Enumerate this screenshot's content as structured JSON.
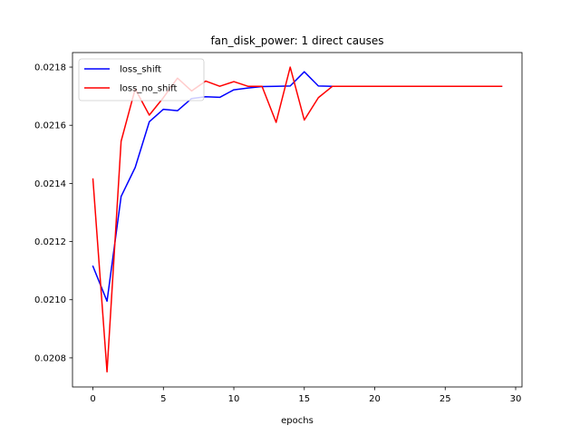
{
  "chart_data": {
    "type": "line",
    "title": "fan_disk_power: 1 direct causes",
    "xlabel": "epochs",
    "ylabel": "",
    "xlim": [
      -1.45,
      30.45
    ],
    "ylim": [
      0.0207,
      0.02185
    ],
    "xticks": [
      0,
      5,
      10,
      15,
      20,
      25,
      30
    ],
    "xtick_labels": [
      "0",
      "5",
      "10",
      "15",
      "20",
      "25",
      "30"
    ],
    "yticks": [
      0.0208,
      0.021,
      0.0212,
      0.0214,
      0.0216,
      0.0218
    ],
    "ytick_labels": [
      "0.0208",
      "0.0210",
      "0.0212",
      "0.0214",
      "0.0216",
      "0.0218"
    ],
    "grid": false,
    "legend_position": "top-left",
    "x": [
      0,
      1,
      2,
      3,
      4,
      5,
      6,
      7,
      8,
      9,
      10,
      11,
      12,
      13,
      14,
      15,
      16,
      17,
      18,
      19,
      20,
      21,
      22,
      23,
      24,
      25,
      26,
      27,
      28,
      29
    ],
    "series": [
      {
        "name": "loss_shift",
        "color": "#0000ff",
        "values": [
          0.021115,
          0.020995,
          0.021355,
          0.021455,
          0.021612,
          0.021655,
          0.02165,
          0.021692,
          0.021698,
          0.021696,
          0.021722,
          0.021728,
          0.021733,
          0.021734,
          0.021735,
          0.021784,
          0.021735,
          0.021734,
          0.021734,
          0.021734,
          0.021734,
          0.021734,
          0.021734,
          0.021734,
          0.021734,
          0.021734,
          0.021734,
          0.021734,
          0.021734,
          0.021734
        ]
      },
      {
        "name": "loss_no_shift",
        "color": "#ff0000",
        "values": [
          0.021415,
          0.020752,
          0.021545,
          0.021725,
          0.021635,
          0.021695,
          0.021762,
          0.021718,
          0.021752,
          0.021734,
          0.02175,
          0.021734,
          0.021734,
          0.02161,
          0.0218,
          0.021618,
          0.021695,
          0.021734,
          0.021734,
          0.021734,
          0.021734,
          0.021734,
          0.021734,
          0.021734,
          0.021734,
          0.021734,
          0.021734,
          0.021734,
          0.021734,
          0.021734
        ]
      }
    ]
  }
}
